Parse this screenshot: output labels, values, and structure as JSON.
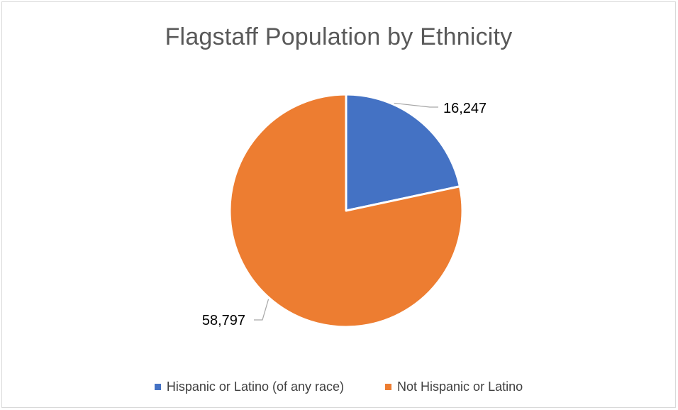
{
  "chart_data": {
    "type": "pie",
    "title": "Flagstaff Population by Ethnicity",
    "categories": [
      "Hispanic or Latino (of any race)",
      "Not Hispanic or Latino"
    ],
    "values": [
      16247,
      58797
    ],
    "data_labels": [
      "16,247",
      "58,797"
    ],
    "colors": [
      "#4472C4",
      "#ED7D31"
    ],
    "legend_position": "bottom"
  }
}
